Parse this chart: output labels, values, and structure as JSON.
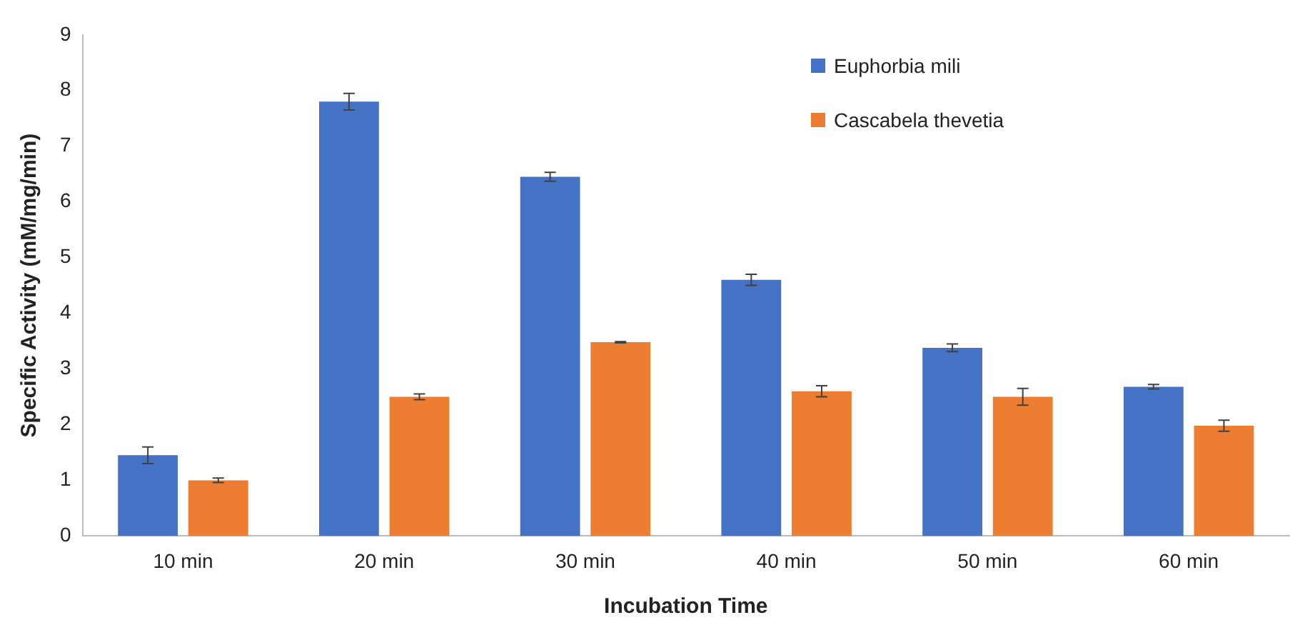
{
  "chart_data": {
    "type": "bar",
    "xlabel": "Incubation Time",
    "ylabel": "Specific Activity (mM/mg/min)",
    "categories": [
      "10 min",
      "20 min",
      "30 min",
      "40 min",
      "50 min",
      "60 min"
    ],
    "series": [
      {
        "name": "Euphorbia mili",
        "color": "#4472c4",
        "values": [
          1.45,
          7.8,
          6.45,
          4.6,
          3.38,
          2.68
        ],
        "errors": [
          0.15,
          0.15,
          0.08,
          0.1,
          0.07,
          0.04
        ]
      },
      {
        "name": "Cascabela thevetia",
        "color": "#ed7d31",
        "values": [
          1.0,
          2.5,
          3.48,
          2.6,
          2.5,
          1.98
        ],
        "errors": [
          0.04,
          0.05,
          0.01,
          0.1,
          0.15,
          0.1
        ]
      }
    ],
    "ylim": [
      0,
      9
    ],
    "yticks": [
      0,
      1,
      2,
      3,
      4,
      5,
      6,
      7,
      8,
      9
    ],
    "grid": false,
    "legend": "top right"
  }
}
